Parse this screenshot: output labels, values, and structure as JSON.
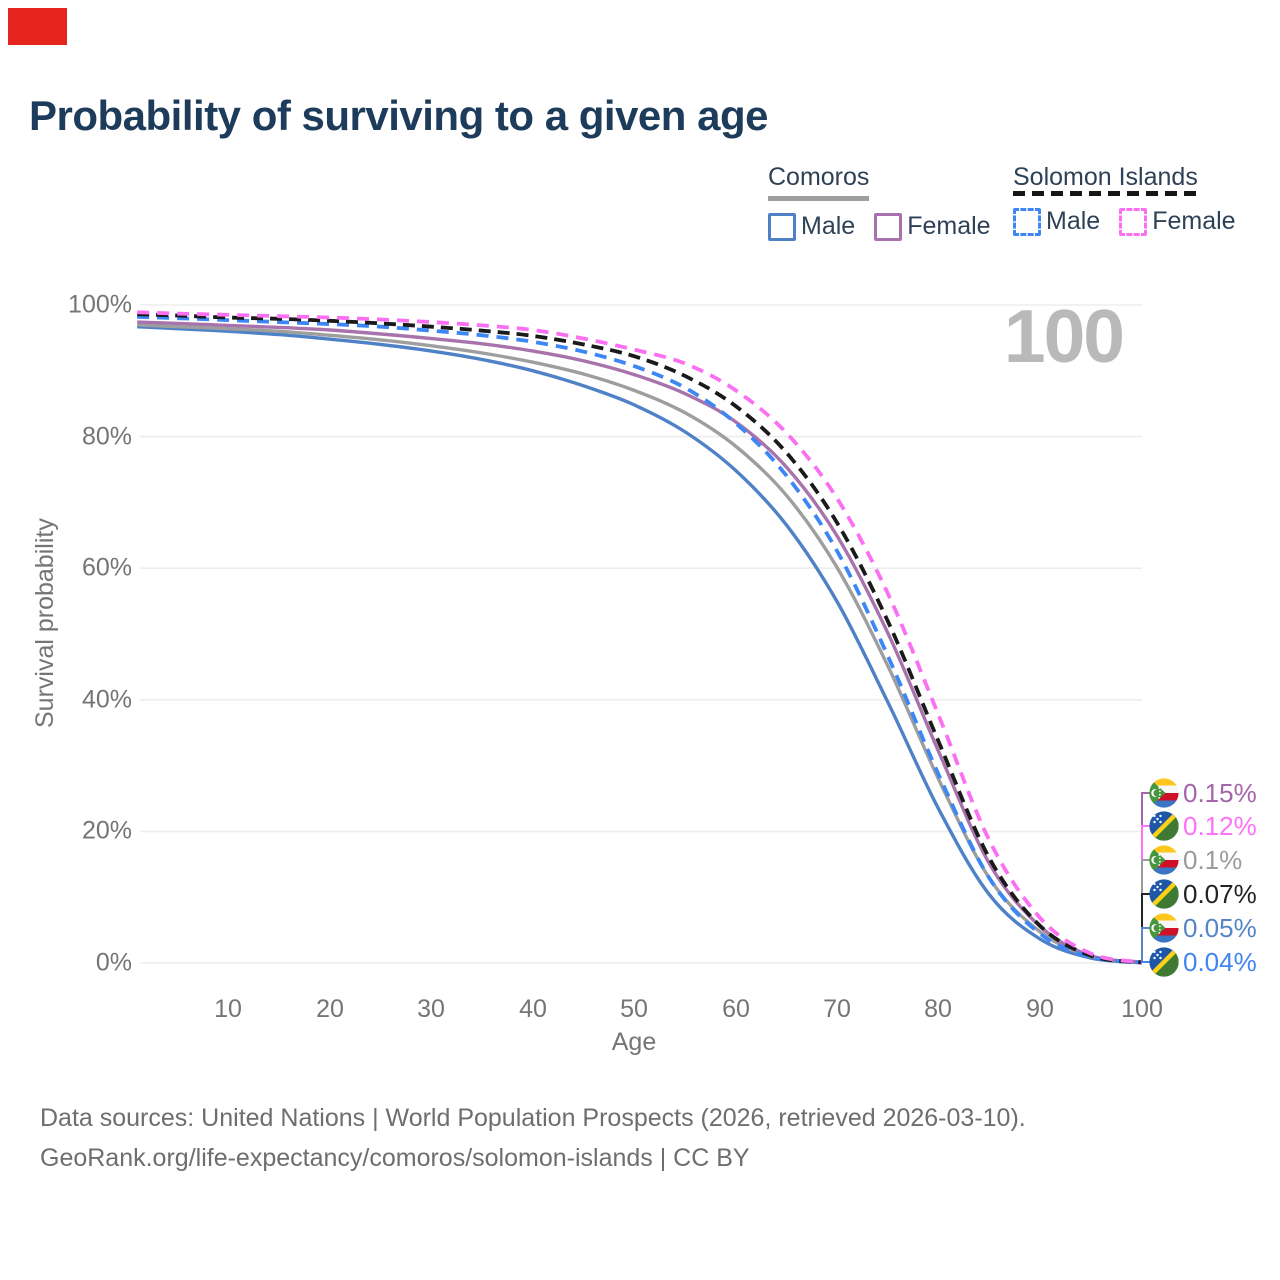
{
  "title": "Probability of surviving to a given age",
  "badge_color": "#e5251d",
  "legend": {
    "groups": [
      {
        "name": "Comoros",
        "line_style": "solid",
        "underline_color": "#9e9e9e",
        "items": [
          {
            "label": "Male",
            "color": "#4f81c7"
          },
          {
            "label": "Female",
            "color": "#a873ac"
          }
        ]
      },
      {
        "name": "Solomon Islands",
        "line_style": "dashed",
        "underline_color": "#161616",
        "items": [
          {
            "label": "Male",
            "color": "#3d87f5"
          },
          {
            "label": "Female",
            "color": "#fb70f3"
          }
        ]
      }
    ]
  },
  "watermark": "100",
  "axis": {
    "x_label": "Age",
    "y_label": "Survival probability",
    "x_tick_labels": [
      "10",
      "20",
      "30",
      "40",
      "50",
      "60",
      "70",
      "80",
      "90",
      "100"
    ],
    "y_tick_labels": [
      "0%",
      "20%",
      "40%",
      "60%",
      "80%",
      "100%"
    ]
  },
  "chart_data": {
    "type": "line",
    "title": "Probability of surviving to a given age",
    "xlabel": "Age",
    "ylabel": "Survival probability",
    "xlim": [
      0,
      100
    ],
    "ylim": [
      0,
      100
    ],
    "grid": "horizontal",
    "legend_position": "top-right",
    "ages": [
      1,
      5,
      10,
      15,
      20,
      25,
      30,
      35,
      40,
      45,
      50,
      55,
      60,
      65,
      70,
      75,
      80,
      85,
      90,
      95,
      100
    ],
    "series": [
      {
        "name": "Comoros Male",
        "country": "Comoros",
        "color": "#4f81c7",
        "dash": null,
        "values": [
          96.7,
          96.4,
          96.0,
          95.5,
          94.8,
          94.0,
          93.0,
          91.7,
          90.0,
          87.7,
          84.8,
          80.7,
          74.8,
          66.5,
          54.8,
          39.5,
          23.3,
          10.3,
          3.6,
          0.75,
          0.05
        ]
      },
      {
        "name": "Comoros (both sexes)",
        "country": "Comoros",
        "color": "#9e9e9e",
        "dash": null,
        "values": [
          97.0,
          96.7,
          96.4,
          96.0,
          95.4,
          94.7,
          93.8,
          92.7,
          91.3,
          89.5,
          87.0,
          83.6,
          78.5,
          71.0,
          60.0,
          45.0,
          27.8,
          12.8,
          4.7,
          1.0,
          0.1
        ]
      },
      {
        "name": "Comoros Female",
        "country": "Comoros",
        "color": "#a873ac",
        "dash": null,
        "values": [
          97.4,
          97.2,
          96.9,
          96.6,
          96.2,
          95.6,
          94.9,
          94.1,
          93.0,
          91.5,
          89.4,
          86.5,
          82.2,
          75.3,
          64.8,
          50.0,
          32.0,
          15.0,
          5.5,
          1.1,
          0.15
        ]
      },
      {
        "name": "Solomon Islands Male",
        "country": "Solomon Islands",
        "color": "#3d87f5",
        "dash": "12 8",
        "values": [
          98.2,
          98.0,
          97.7,
          97.4,
          97.1,
          96.7,
          96.1,
          95.4,
          94.4,
          92.9,
          90.7,
          87.4,
          82.0,
          74.0,
          62.5,
          46.5,
          28.5,
          12.8,
          4.4,
          0.9,
          0.04
        ]
      },
      {
        "name": "Solomon Islands (both sexes)",
        "country": "Solomon Islands",
        "color": "#1a1a1a",
        "dash": "12 7",
        "values": [
          98.6,
          98.4,
          98.1,
          97.9,
          97.6,
          97.2,
          96.7,
          96.1,
          95.3,
          94.0,
          92.2,
          89.2,
          84.6,
          77.5,
          66.8,
          51.8,
          33.5,
          15.8,
          5.6,
          1.1,
          0.07
        ]
      },
      {
        "name": "Solomon Islands Female",
        "country": "Solomon Islands",
        "color": "#fb70f3",
        "dash": "12 8",
        "values": [
          98.9,
          98.7,
          98.5,
          98.3,
          98.1,
          97.8,
          97.4,
          96.9,
          96.2,
          94.9,
          93.2,
          91.1,
          87.0,
          80.5,
          70.5,
          56.0,
          37.5,
          18.5,
          6.8,
          1.4,
          0.12
        ]
      }
    ],
    "end_labels": [
      {
        "value": "0.15%",
        "series": "Comoros Female",
        "country": "comoros",
        "color": "#a565ab"
      },
      {
        "value": "0.12%",
        "series": "Solomon Islands Female",
        "country": "solomon-islands",
        "color": "#fe71f9"
      },
      {
        "value": "0.1%",
        "series": "Comoros (both sexes)",
        "country": "comoros",
        "color": "#9b9b9b"
      },
      {
        "value": "0.07%",
        "series": "Solomon Islands (both sexes)",
        "country": "solomon-islands",
        "color": "#232323"
      },
      {
        "value": "0.05%",
        "series": "Comoros Male",
        "country": "comoros",
        "color": "#5585c8"
      },
      {
        "value": "0.04%",
        "series": "Solomon Islands Male",
        "country": "solomon-islands",
        "color": "#4186f0"
      }
    ]
  },
  "source": {
    "line1": "Data sources: United Nations | World Population Prospects (2026, retrieved 2026-03-10).",
    "line2": "GeoRank.org/life-expectancy/comoros/solomon-islands | CC BY"
  }
}
